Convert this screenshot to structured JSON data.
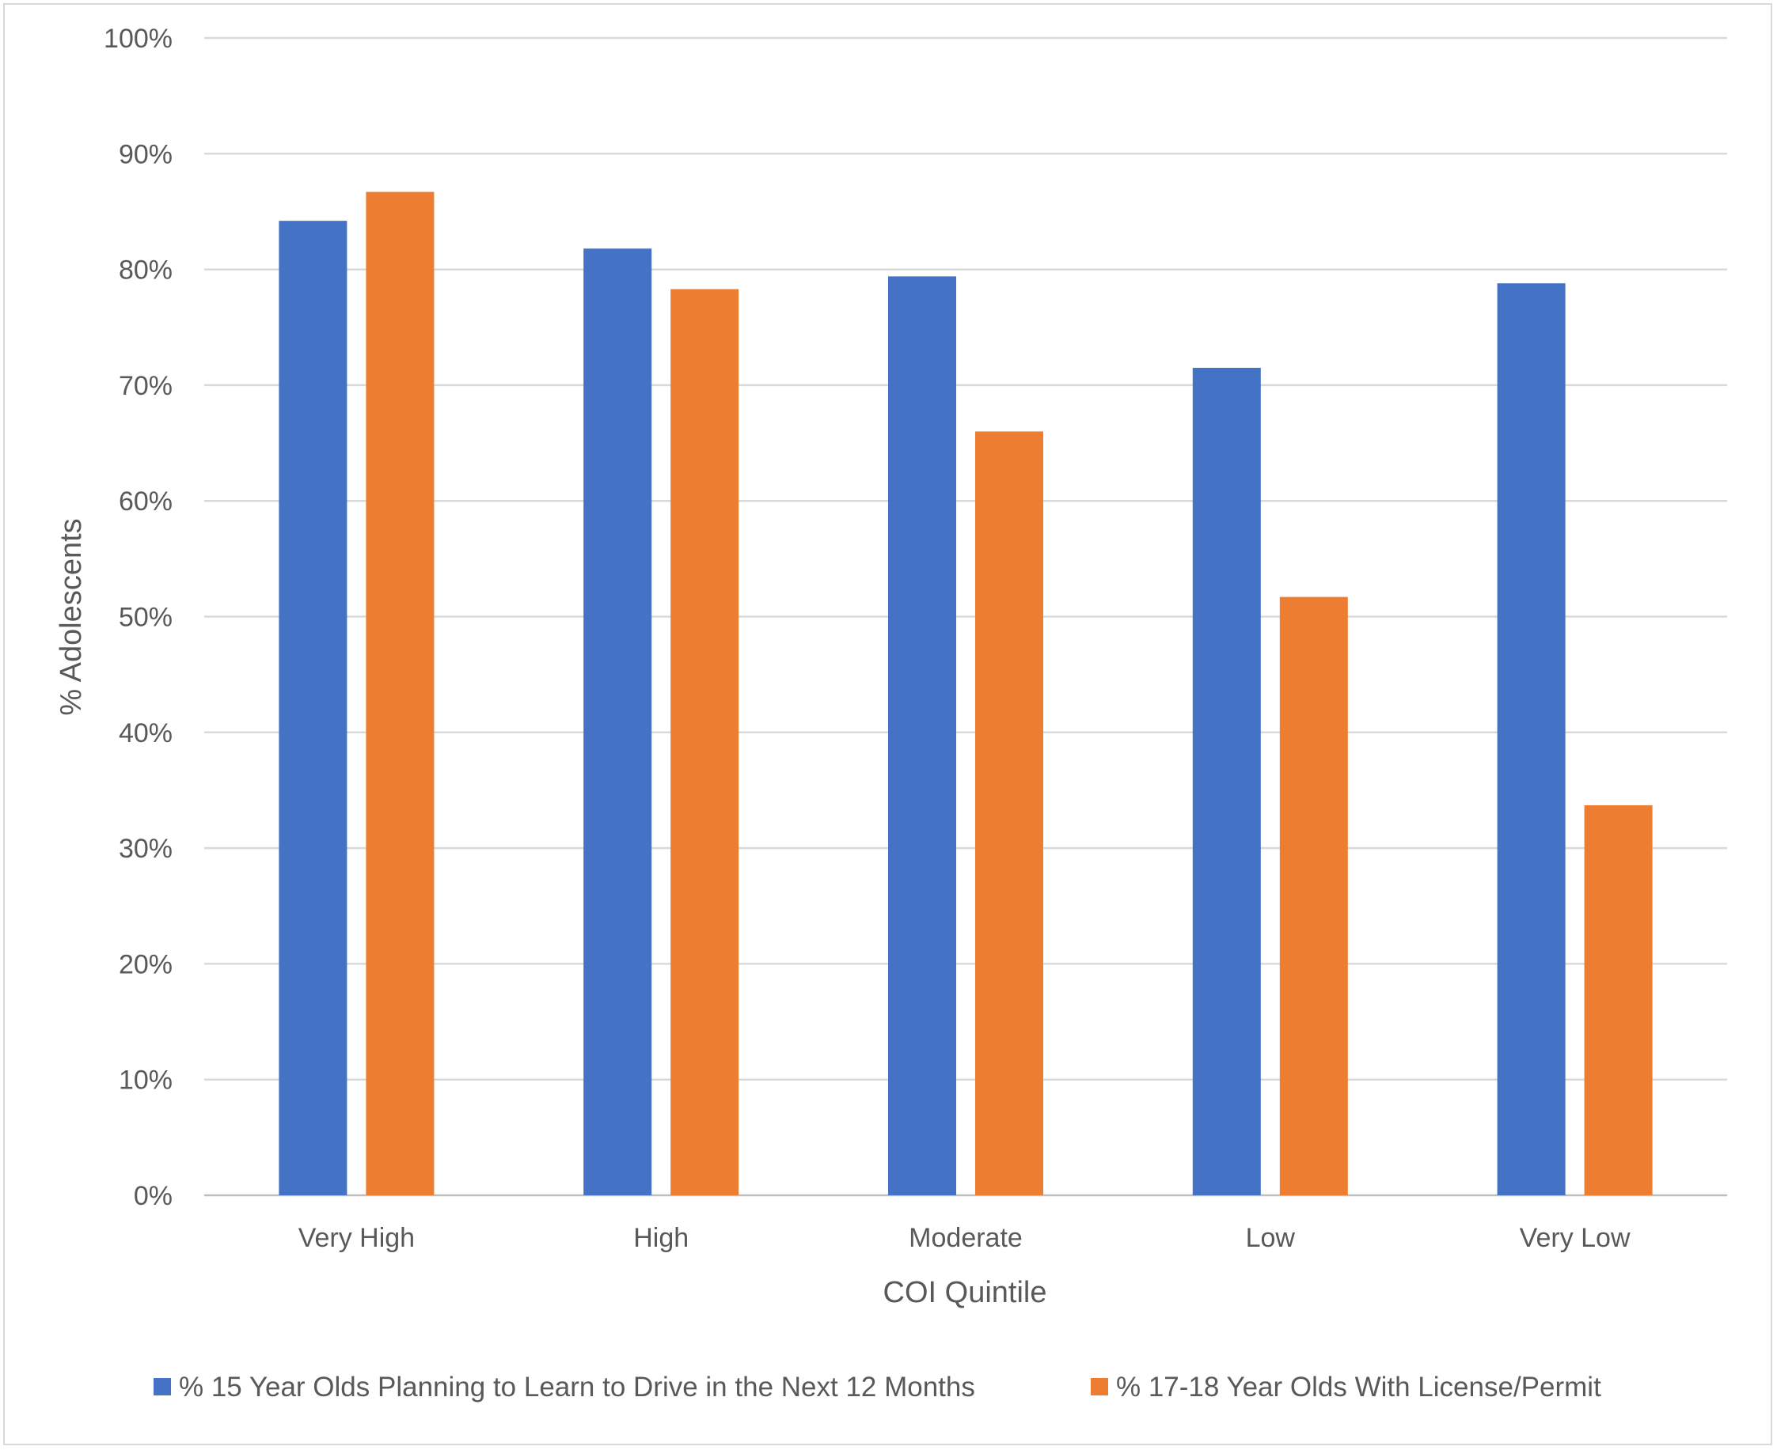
{
  "chart_data": {
    "type": "bar",
    "xlabel": "COI Quintile",
    "ylabel": "% Adolescents",
    "categories": [
      "Very High",
      "High",
      "Moderate",
      "Low",
      "Very Low"
    ],
    "series": [
      {
        "name": "% 15 Year Olds Planning to Learn to Drive in the Next 12 Months",
        "color": "#4472c4",
        "values": [
          84.2,
          81.8,
          79.4,
          71.5,
          78.8
        ]
      },
      {
        "name": "% 17-18 Year Olds With License/Permit",
        "color": "#ed7d31",
        "values": [
          86.7,
          78.3,
          66.0,
          51.7,
          33.7
        ]
      }
    ],
    "ylim": [
      0,
      100
    ],
    "yticks": [
      0,
      10,
      20,
      30,
      40,
      50,
      60,
      70,
      80,
      90,
      100
    ],
    "ytick_labels": [
      "0%",
      "10%",
      "20%",
      "30%",
      "40%",
      "50%",
      "60%",
      "70%",
      "80%",
      "90%",
      "100%"
    ],
    "grid": true,
    "legend_position": "bottom"
  }
}
